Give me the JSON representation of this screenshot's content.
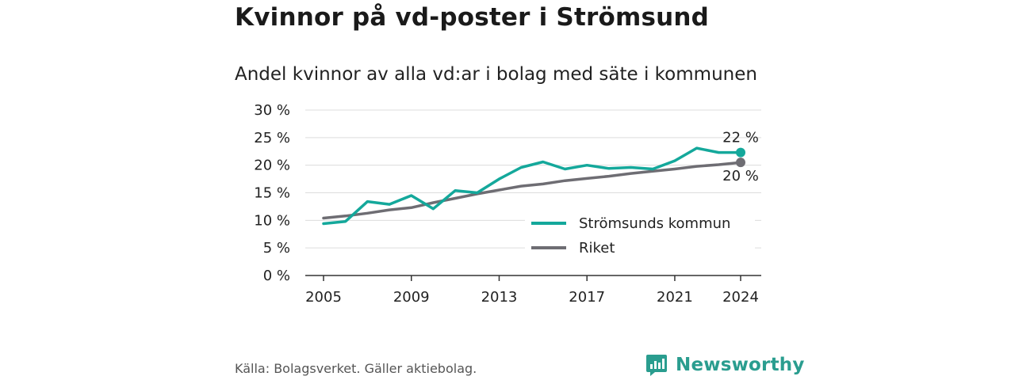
{
  "header": {
    "title": "Kvinnor på vd-poster i Strömsund",
    "subtitle": "Andel kvinnor av alla vd:ar i bolag med säte i kommunen"
  },
  "footer": {
    "source": "Källa: Bolagsverket. Gäller aktiebolag.",
    "brand": "Newsworthy",
    "brand_color": "#2a9d8f"
  },
  "chart_data": {
    "type": "line",
    "title": "Andel kvinnor av alla vd:ar i bolag med säte i kommunen",
    "xlabel": "",
    "ylabel": "",
    "x": [
      2005,
      2006,
      2007,
      2008,
      2009,
      2010,
      2011,
      2012,
      2013,
      2014,
      2015,
      2016,
      2017,
      2018,
      2019,
      2020,
      2021,
      2022,
      2023,
      2024
    ],
    "xticks": [
      2005,
      2009,
      2013,
      2017,
      2021,
      2024
    ],
    "xtick_labels": [
      "2005",
      "2009",
      "2013",
      "2017",
      "2021",
      "2024"
    ],
    "ylim": [
      0,
      30
    ],
    "yticks": [
      0,
      5,
      10,
      15,
      20,
      25,
      30
    ],
    "ytick_labels": [
      "0 %",
      "5 %",
      "10 %",
      "15 %",
      "20 %",
      "25 %",
      "30 %"
    ],
    "grid": true,
    "legend_position": "bottom-right",
    "series": [
      {
        "name": "Strömsunds kommun",
        "color": "#14a89b",
        "values": [
          9.4,
          9.8,
          13.4,
          12.9,
          14.5,
          12.1,
          15.4,
          15.0,
          17.5,
          19.6,
          20.6,
          19.3,
          20.0,
          19.4,
          19.6,
          19.3,
          20.8,
          23.1,
          22.3,
          22.3
        ],
        "end_label": "22 %"
      },
      {
        "name": "Riket",
        "color": "#6e6d73",
        "values": [
          10.4,
          10.8,
          11.3,
          11.9,
          12.3,
          13.2,
          14.0,
          14.8,
          15.5,
          16.2,
          16.6,
          17.2,
          17.6,
          18.0,
          18.5,
          18.9,
          19.3,
          19.8,
          20.1,
          20.5
        ],
        "end_label": "20 %"
      }
    ]
  }
}
